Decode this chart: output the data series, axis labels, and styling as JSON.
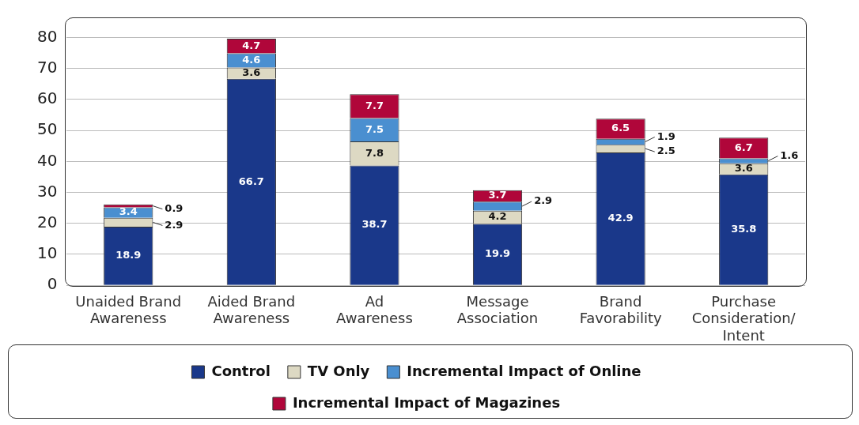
{
  "chart_data": {
    "type": "bar",
    "stacked": true,
    "categories": [
      "Unaided Brand\nAwareness",
      "Aided Brand\nAwareness",
      "Ad\nAwareness",
      "Message\nAssociation",
      "Brand\nFavorability",
      "Purchase\nConsideration/\nIntent"
    ],
    "series": [
      {
        "name": "Control",
        "color": "#1a388a",
        "values": [
          18.9,
          66.7,
          38.7,
          19.9,
          42.9,
          35.8
        ]
      },
      {
        "name": "TV Only",
        "color": "#ddd9c3",
        "values": [
          2.9,
          3.6,
          7.8,
          4.2,
          2.5,
          3.6
        ]
      },
      {
        "name": "Incremental Impact of Online",
        "color": "#4a8fd0",
        "values": [
          3.4,
          4.6,
          7.5,
          2.9,
          1.9,
          1.6
        ]
      },
      {
        "name": "Incremental Impact of Magazines",
        "color": "#b0063a",
        "values": [
          0.9,
          4.7,
          7.7,
          3.7,
          6.5,
          6.7
        ]
      }
    ],
    "ylim": [
      0,
      86
    ],
    "yticks": [
      0,
      10,
      20,
      30,
      40,
      50,
      60,
      70,
      80
    ],
    "grid": "y",
    "legend": "bottom",
    "data_labels": true
  }
}
